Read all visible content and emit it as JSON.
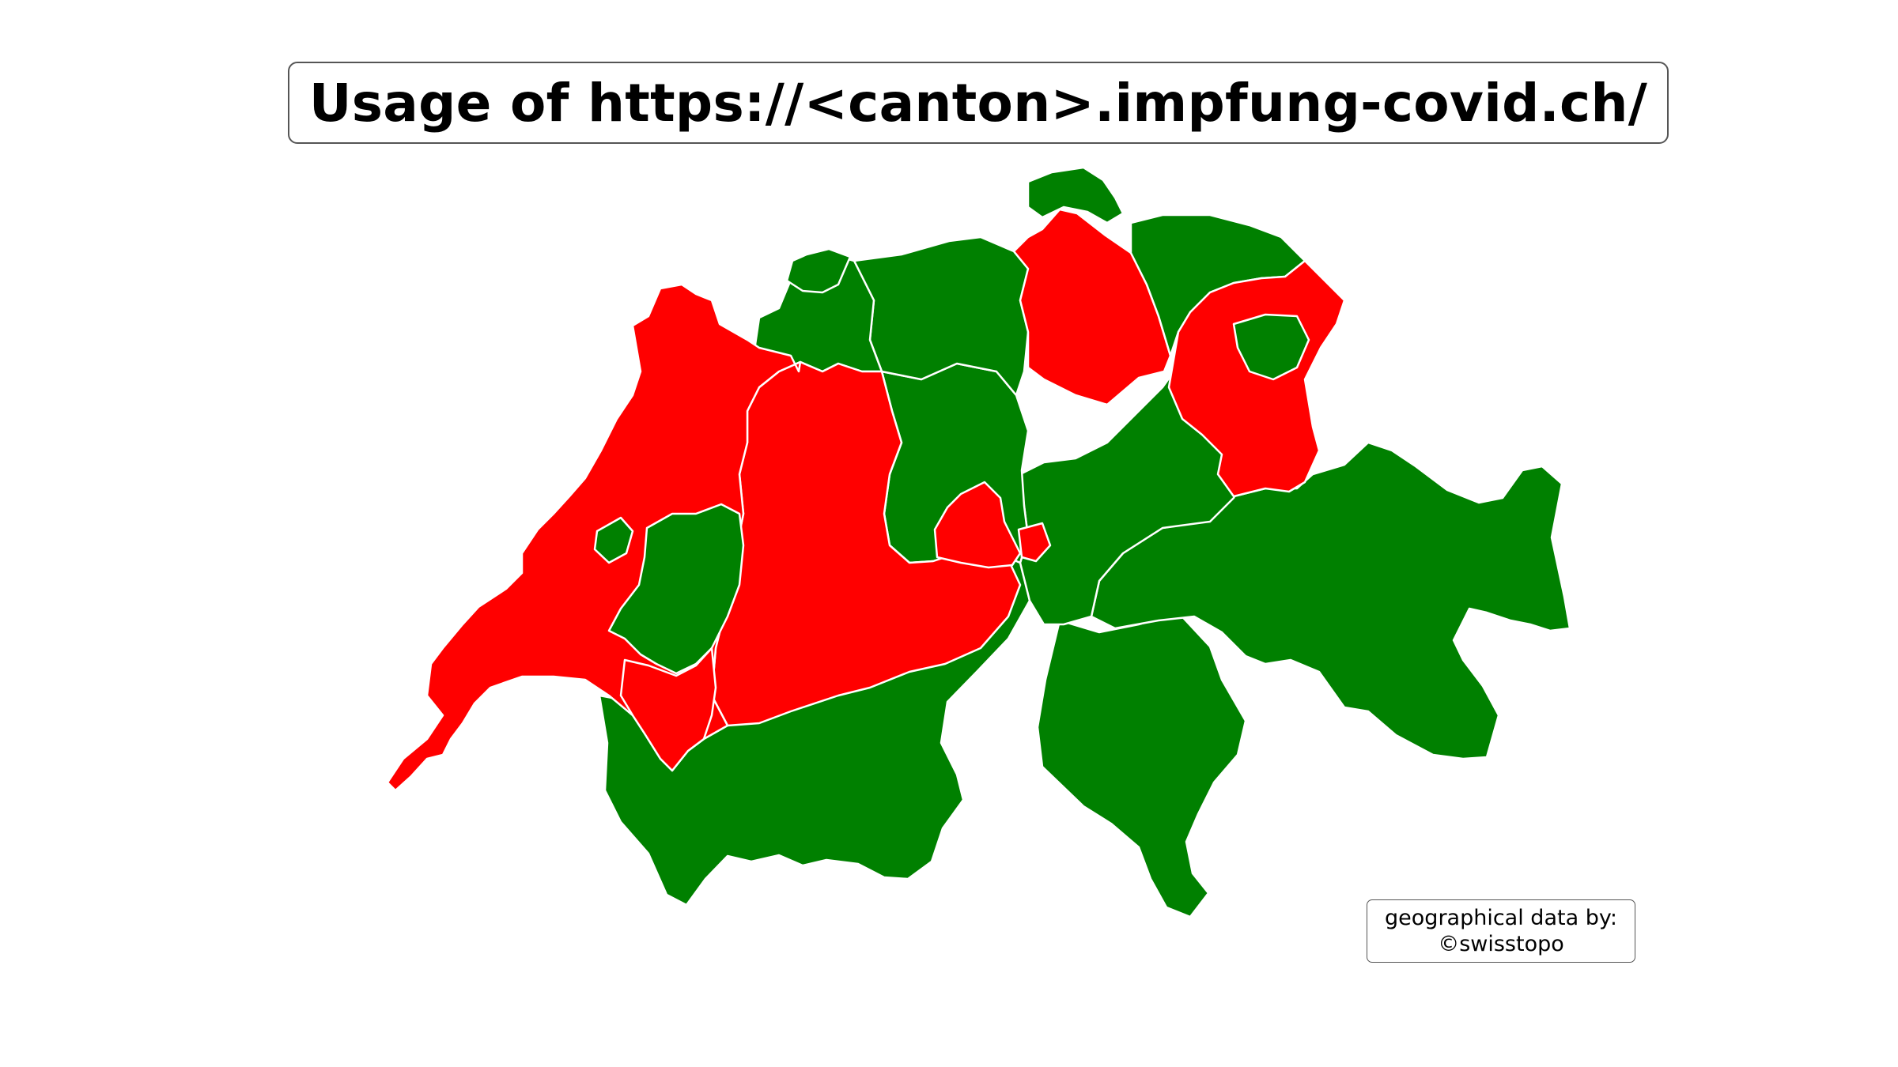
{
  "title": "Usage of https://<canton>.impfung-covid.ch/",
  "credit": {
    "line1": "geographical data by:",
    "line2": "©swisstopo"
  },
  "colors": {
    "uses_site": "#ff0000",
    "does_not_use_site": "#008000",
    "border": "#ffffff"
  },
  "regions": [
    {
      "id": "geneva",
      "status": "uses_site"
    },
    {
      "id": "vaud",
      "status": "uses_site"
    },
    {
      "id": "jura",
      "status": "uses_site"
    },
    {
      "id": "neuchatel",
      "status": "uses_site"
    },
    {
      "id": "fribourg",
      "status": "green_enclave"
    },
    {
      "id": "bern",
      "status": "uses_site"
    },
    {
      "id": "bern-jura-strip",
      "status": "uses_site"
    },
    {
      "id": "solothurn",
      "status": "does_not_use_site"
    },
    {
      "id": "basel",
      "status": "does_not_use_site"
    },
    {
      "id": "aargau",
      "status": "does_not_use_site"
    },
    {
      "id": "zurich",
      "status": "uses_site"
    },
    {
      "id": "schaffhausen",
      "status": "does_not_use_site"
    },
    {
      "id": "thurgau",
      "status": "does_not_use_site"
    },
    {
      "id": "st-gallen",
      "status": "uses_site"
    },
    {
      "id": "appenzell",
      "status": "does_not_use_site"
    },
    {
      "id": "lucerne",
      "status": "does_not_use_site"
    },
    {
      "id": "obwalden",
      "status": "uses_site"
    },
    {
      "id": "nidwalden",
      "status": "uses_site"
    },
    {
      "id": "central",
      "status": "does_not_use_site"
    },
    {
      "id": "graubunden",
      "status": "does_not_use_site"
    },
    {
      "id": "valais",
      "status": "does_not_use_site"
    },
    {
      "id": "ticino",
      "status": "does_not_use_site"
    }
  ]
}
